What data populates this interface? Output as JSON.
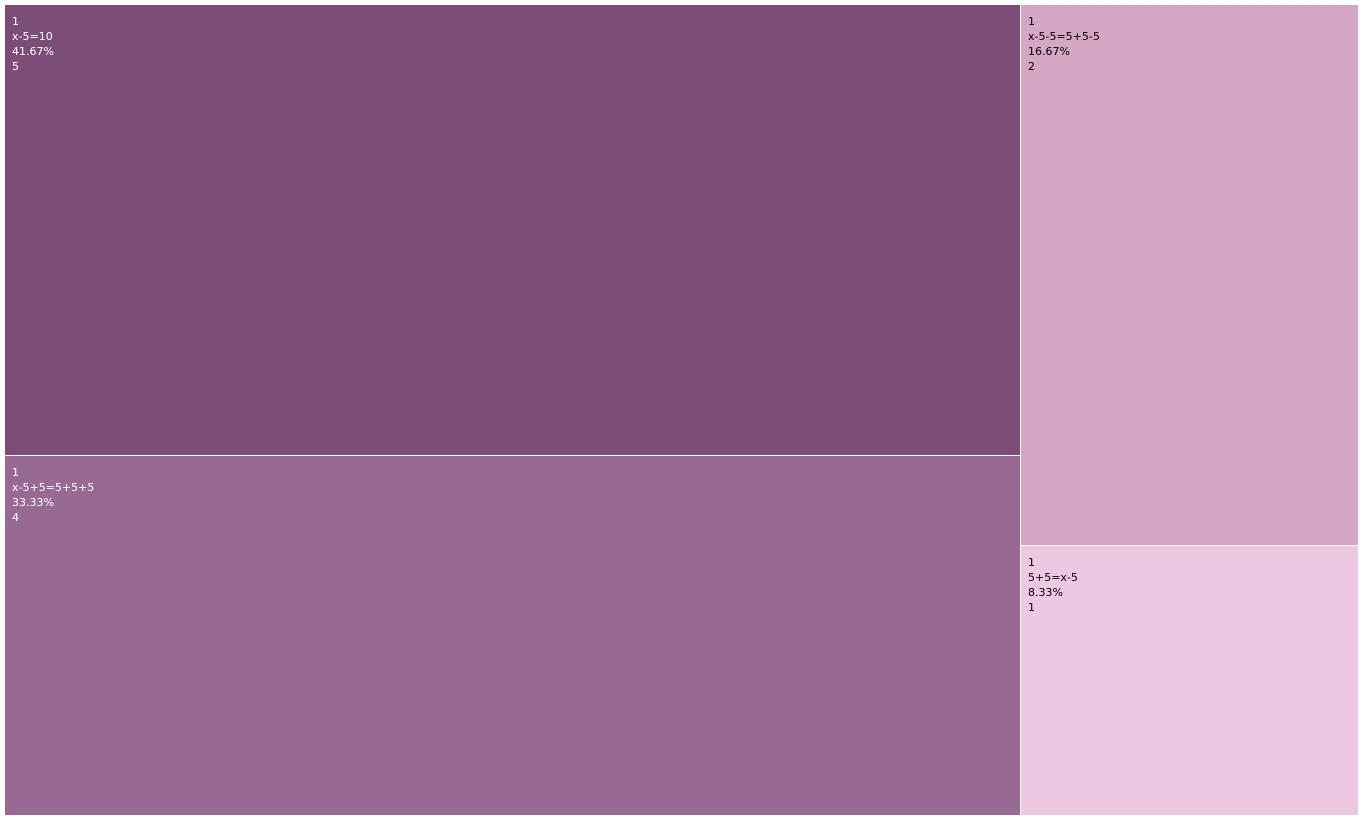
{
  "chart_data": {
    "type": "treemap",
    "tiles": [
      {
        "group": "1",
        "label": "x-5=10",
        "percent": "41.67%",
        "value": 5,
        "color": "#7b4d77",
        "text_color": "#ffffff"
      },
      {
        "group": "1",
        "label": "x-5+5=5+5+5",
        "percent": "33.33%",
        "value": 4,
        "color": "#976993",
        "text_color": "#ffffff"
      },
      {
        "group": "1",
        "label": "x-5-5=5+5-5",
        "percent": "16.67%",
        "value": 2,
        "color": "#d5a7c5",
        "text_color": "#000000"
      },
      {
        "group": "1",
        "label": "5+5=x-5",
        "percent": "8.33%",
        "value": 1,
        "color": "#ecc8e3",
        "text_color": "#000000"
      }
    ]
  }
}
